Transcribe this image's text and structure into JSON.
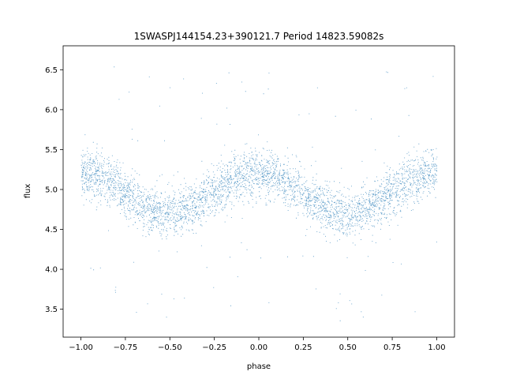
{
  "chart_data": {
    "type": "scatter",
    "title": "1SWASPJ144154.23+390121.7 Period 14823.59082s",
    "xlabel": "phase",
    "ylabel": "flux",
    "xlim": [
      -1.1,
      1.1
    ],
    "ylim": [
      3.15,
      6.8
    ],
    "xticks": [
      -1.0,
      -0.75,
      -0.5,
      -0.25,
      0.0,
      0.25,
      0.5,
      0.75,
      1.0
    ],
    "xtick_labels": [
      "−1.00",
      "−0.75",
      "−0.50",
      "−0.25",
      "0.00",
      "0.25",
      "0.50",
      "0.75",
      "1.00"
    ],
    "yticks": [
      3.5,
      4.0,
      4.5,
      5.0,
      5.5,
      6.0,
      6.5
    ],
    "ytick_labels": [
      "3.5",
      "4.0",
      "4.5",
      "5.0",
      "5.5",
      "6.0",
      "6.5"
    ],
    "grid": false,
    "point_color": "#1f77b4",
    "series": [
      {
        "phase": [
          -1.0,
          -0.9,
          -0.8,
          -0.7,
          -0.6,
          -0.5,
          -0.4,
          -0.3,
          -0.2,
          -0.1,
          0.0,
          0.1,
          0.2,
          0.3,
          0.4,
          0.5,
          0.6,
          0.7,
          0.8,
          0.9,
          1.0
        ],
        "flux_median": [
          5.2,
          5.17,
          5.05,
          4.88,
          4.74,
          4.68,
          4.75,
          4.9,
          5.05,
          5.17,
          5.22,
          5.15,
          5.02,
          4.87,
          4.73,
          4.68,
          4.76,
          4.9,
          5.05,
          5.17,
          5.22
        ],
        "flux_spread": 0.2,
        "n_points": 7000
      }
    ]
  }
}
